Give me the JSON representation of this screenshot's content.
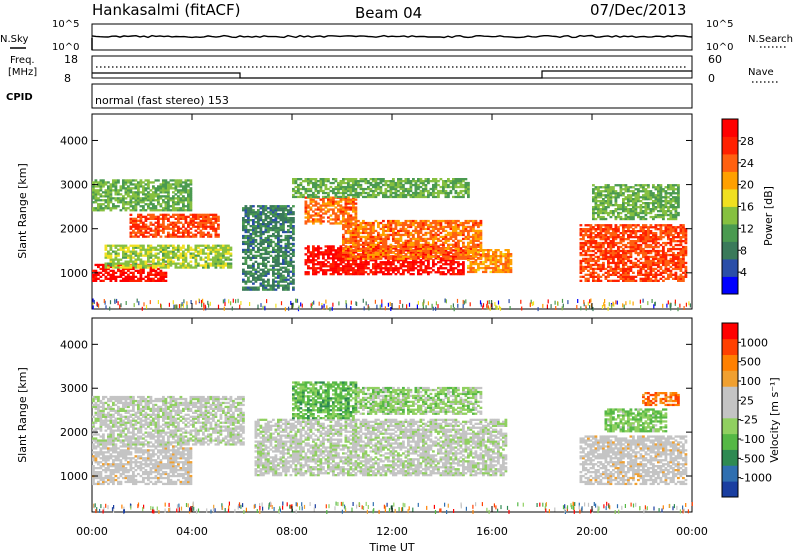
{
  "header": {
    "station": "Hankasalmi (fitACF)",
    "beam": "Beam 04",
    "date": "07/Dec/2013"
  },
  "strip": {
    "nsky_label": "N.Sky",
    "nsky_ticks": [
      "10^5",
      "10^0"
    ],
    "nsearch_label": "N.Search",
    "nsearch_ticks": [
      "10^5",
      "10^0"
    ],
    "freq_label": "Freq.",
    "freq_unit": "[MHz]",
    "freq_ticks": [
      "18",
      "8"
    ],
    "nave_label": "Nave",
    "nave_ticks": [
      "60",
      "0"
    ],
    "cpid_label": "CPID",
    "cpid_text": "normal (fast stereo) 153"
  },
  "colors": {
    "power_scale": [
      "#0000ff",
      "#2a4ea8",
      "#3a7a5a",
      "#4a9a50",
      "#86c040",
      "#f0e020",
      "#ffa000",
      "#ff6010",
      "#ff2000",
      "#ff0000"
    ],
    "velocity_scale": [
      "#1a3ea0",
      "#2f6fb0",
      "#2e8a52",
      "#55b845",
      "#90d060",
      "#c4c4c4",
      "#c4c4c4",
      "#f0a030",
      "#ff8000",
      "#ff4000",
      "#ff0000"
    ]
  },
  "chart_data": [
    {
      "type": "heatmap",
      "panel": "power",
      "ylabel": "Slant Range [km]",
      "ylim": [
        180,
        4600
      ],
      "yticks": [
        "4000",
        "3000",
        "2000",
        "1000"
      ],
      "x_range": [
        "00:00",
        "24:00"
      ],
      "colorbar": {
        "label": "Power [dB]",
        "ticks": [
          "28",
          "24",
          "20",
          "16",
          "12",
          "8",
          "4"
        ],
        "range": [
          0,
          30
        ]
      },
      "regions": [
        {
          "t0": 0.0,
          "t1": 3.0,
          "r0": 800,
          "r1": 1200,
          "level": 28
        },
        {
          "t0": 0.5,
          "t1": 5.5,
          "r0": 1100,
          "r1": 1600,
          "level": 14
        },
        {
          "t0": 1.5,
          "t1": 5.0,
          "r0": 1800,
          "r1": 2300,
          "level": 24
        },
        {
          "t0": 0.0,
          "t1": 4.0,
          "r0": 2400,
          "r1": 3100,
          "level": 12
        },
        {
          "t0": 8.5,
          "t1": 14.8,
          "r0": 950,
          "r1": 1600,
          "level": 28
        },
        {
          "t0": 10.0,
          "t1": 15.5,
          "r0": 1300,
          "r1": 2200,
          "level": 22
        },
        {
          "t0": 8.5,
          "t1": 10.5,
          "r0": 2100,
          "r1": 2700,
          "level": 22
        },
        {
          "t0": 8.0,
          "t1": 15.0,
          "r0": 2700,
          "r1": 3150,
          "level": 12
        },
        {
          "t0": 15.0,
          "t1": 16.8,
          "r0": 1000,
          "r1": 1500,
          "level": 20
        },
        {
          "t0": 6.0,
          "t1": 8.0,
          "r0": 600,
          "r1": 2500,
          "level": 8
        },
        {
          "t0": 19.5,
          "t1": 23.8,
          "r0": 800,
          "r1": 2100,
          "level": 24
        },
        {
          "t0": 20.0,
          "t1": 23.5,
          "r0": 2200,
          "r1": 3000,
          "level": 12
        }
      ]
    },
    {
      "type": "heatmap",
      "panel": "velocity",
      "ylabel": "Slant Range [km]",
      "ylim": [
        180,
        4600
      ],
      "yticks": [
        "4000",
        "3000",
        "2000",
        "1000"
      ],
      "x": [
        "00:00",
        "04:00",
        "08:00",
        "12:00",
        "16:00",
        "20:00",
        "00:00"
      ],
      "xlabel": "Time UT",
      "colorbar": {
        "label": "Velocity [m s⁻¹]",
        "ticks": [
          "1000",
          "500",
          "100",
          "25",
          "-25",
          "-100",
          "-500",
          "-1000"
        ],
        "range": [
          -1200,
          1200
        ]
      },
      "regions": [
        {
          "t0": 0.0,
          "t1": 4.0,
          "r0": 800,
          "r1": 1700,
          "level": 150
        },
        {
          "t0": 0.0,
          "t1": 6.0,
          "r0": 1700,
          "r1": 2800,
          "level": 0
        },
        {
          "t0": 6.5,
          "t1": 16.5,
          "r0": 1000,
          "r1": 2300,
          "level": 0
        },
        {
          "t0": 8.0,
          "t1": 10.5,
          "r0": 2300,
          "r1": 3150,
          "level": -400
        },
        {
          "t0": 10.5,
          "t1": 15.5,
          "r0": 2400,
          "r1": 3000,
          "level": -200
        },
        {
          "t0": 19.5,
          "t1": 23.8,
          "r0": 800,
          "r1": 1900,
          "level": 150
        },
        {
          "t0": 20.5,
          "t1": 23.0,
          "r0": 2000,
          "r1": 2500,
          "level": -300
        },
        {
          "t0": 22.0,
          "t1": 23.5,
          "r0": 2600,
          "r1": 2900,
          "level": 700
        }
      ]
    }
  ]
}
